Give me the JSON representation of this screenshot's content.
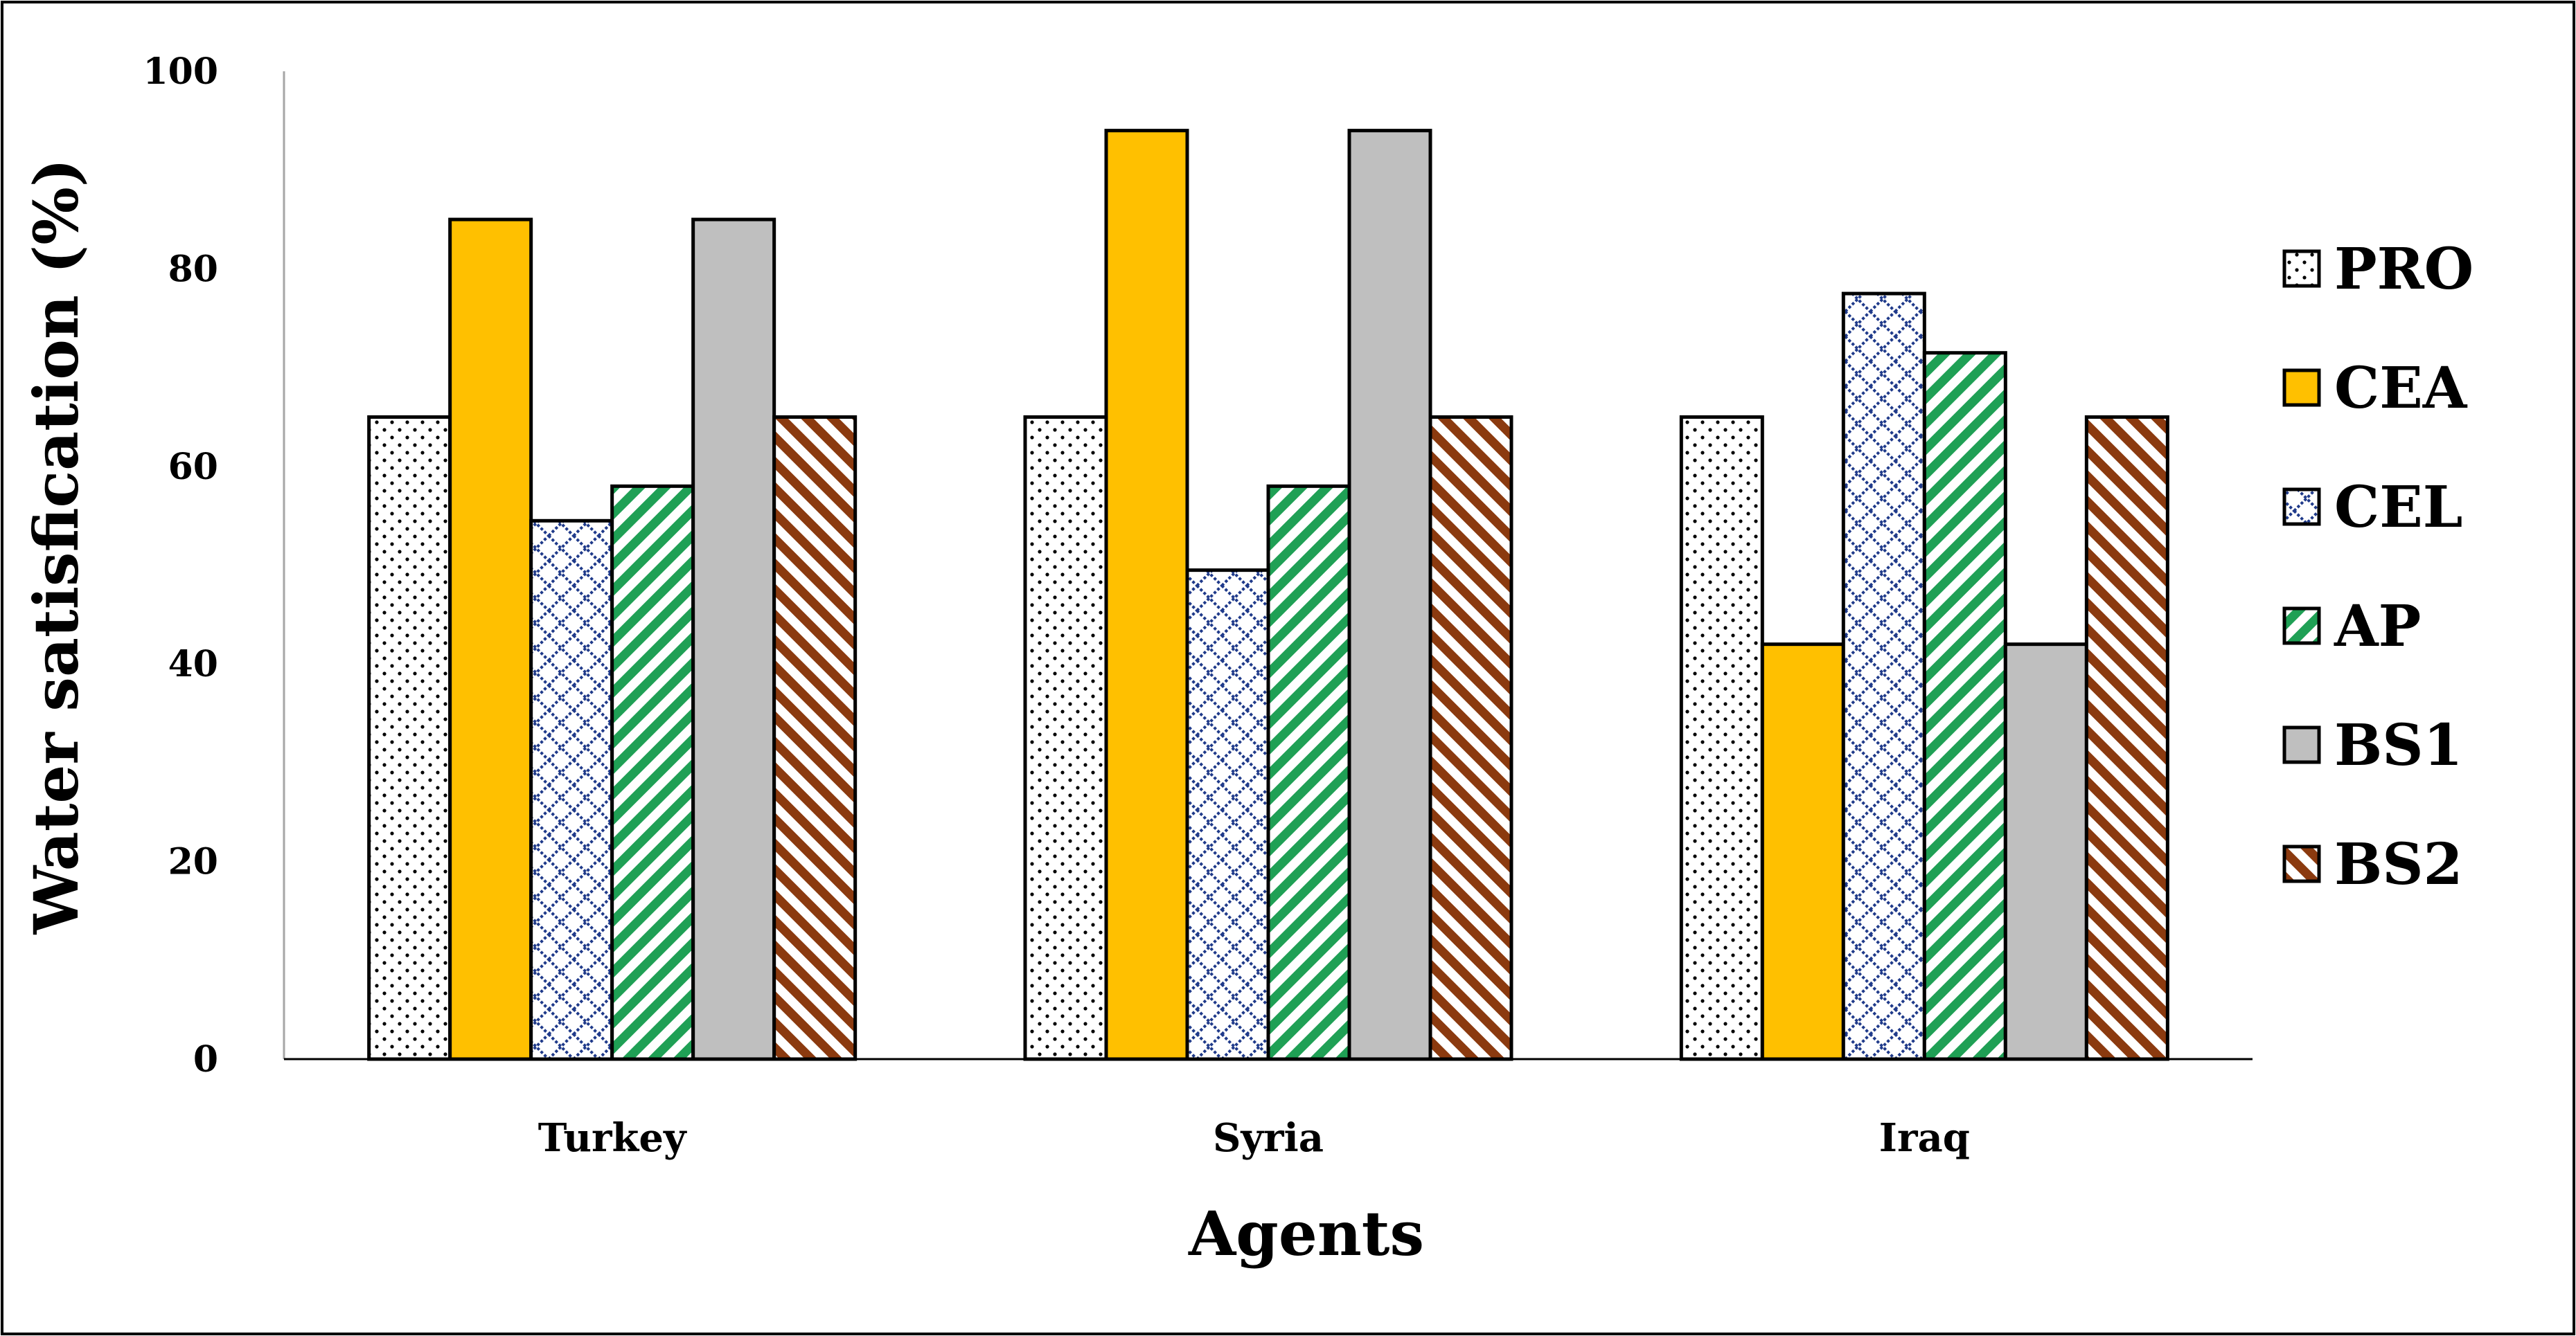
{
  "chart_data": {
    "type": "bar",
    "title": "",
    "xlabel": "Agents",
    "ylabel": "Water satisfication (%)",
    "categories": [
      "Turkey",
      "Syria",
      "Iraq"
    ],
    "ylim": [
      0,
      100
    ],
    "yticks": [
      0,
      20,
      40,
      60,
      80,
      100
    ],
    "grid": false,
    "legend_position": "right",
    "series": [
      {
        "name": "PRO",
        "values": [
          65,
          65,
          65
        ],
        "pattern": "dots",
        "color": "#ffffff",
        "stroke": "#000000"
      },
      {
        "name": "CEA",
        "values": [
          85,
          94,
          42
        ],
        "pattern": "solid",
        "color": "#FFC000",
        "stroke": "#000000"
      },
      {
        "name": "CEL",
        "values": [
          54.5,
          49.5,
          77.5
        ],
        "pattern": "lattice",
        "color": "#1F3A8A",
        "stroke": "#000000"
      },
      {
        "name": "AP",
        "values": [
          58,
          58,
          71.5
        ],
        "pattern": "diagonal-up",
        "color": "#1FA055",
        "stroke": "#000000"
      },
      {
        "name": "BS1",
        "values": [
          85,
          94,
          42
        ],
        "pattern": "solid",
        "color": "#BFBFBF",
        "stroke": "#000000"
      },
      {
        "name": "BS2",
        "values": [
          65,
          65,
          65
        ],
        "pattern": "diagonal-down",
        "color": "#8B3A0F",
        "stroke": "#000000"
      }
    ]
  }
}
